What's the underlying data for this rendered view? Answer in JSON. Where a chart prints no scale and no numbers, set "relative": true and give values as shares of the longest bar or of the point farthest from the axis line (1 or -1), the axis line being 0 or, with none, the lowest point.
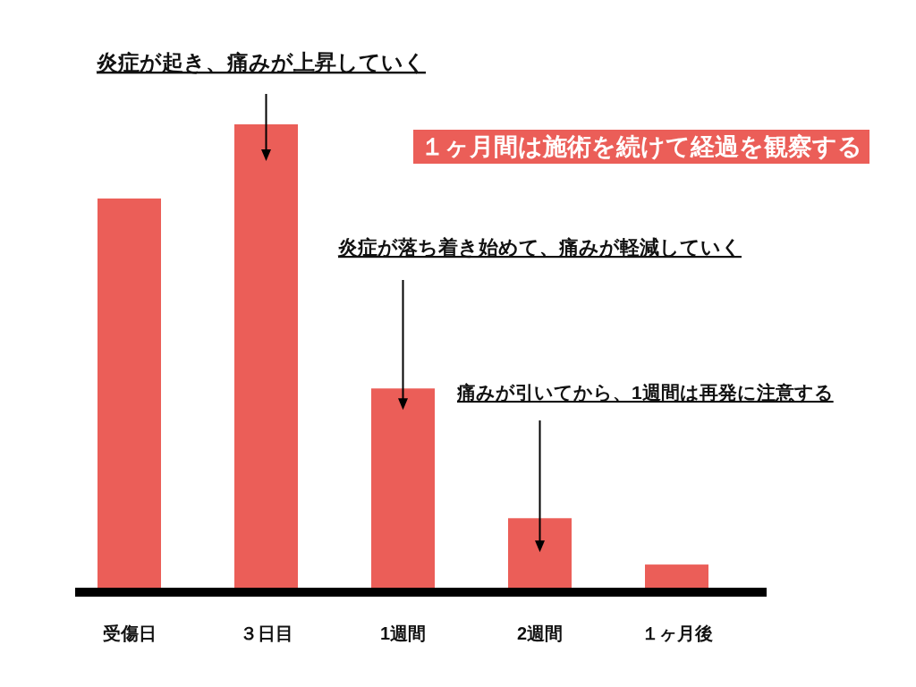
{
  "chart_data": {
    "type": "bar",
    "relative": true,
    "categories": [
      "受傷日",
      "３日目",
      "1週間",
      "2週間",
      "１ヶ月後"
    ],
    "values": [
      0.84,
      1,
      0.43,
      0.15,
      0.05
    ],
    "color": "#eb5e58",
    "annotations": [
      "炎症が起き、痛みが上昇していく",
      "炎症が落ち着き始めて、痛みが軽減していく",
      "痛みが引いてから、1週間は再発に注意する",
      "１ヶ月間は施術を続けて経過を観察する"
    ]
  }
}
